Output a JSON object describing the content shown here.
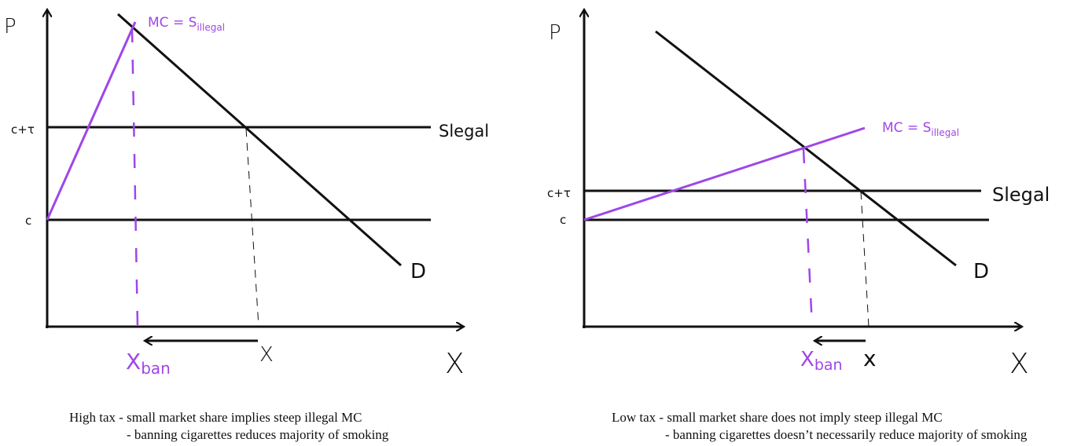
{
  "colors": {
    "ink": "#111111",
    "illegal": "#a046e8"
  },
  "left_diagram": {
    "y_axis_label": "P",
    "x_axis_label": "X",
    "price_labels": {
      "upper": "c+τ",
      "lower": "c"
    },
    "supply_legal_label": "Slegal",
    "mc_label_main": "MC = S",
    "mc_label_sub": "illegal",
    "demand_label": "D",
    "x_ban_main": "X",
    "x_ban_sub": "ban",
    "x_label": "X",
    "caption_line1": "High tax - small market share implies steep illegal MC",
    "caption_line2": "- banning cigarettes reduces majority of smoking"
  },
  "right_diagram": {
    "y_axis_label": "P",
    "x_axis_label": "X",
    "price_labels": {
      "upper": "c+τ",
      "lower": "c"
    },
    "supply_legal_label": "Slegal",
    "mc_label_main": "MC = S",
    "mc_label_sub": "illegal",
    "demand_label": "D",
    "x_ban_main": "X",
    "x_ban_sub": "ban",
    "x_label": "x",
    "caption_line1": "Low tax - small market share does not imply steep illegal MC",
    "caption_line2": "- banning cigarettes doesn’t necessarily reduce majority of smoking"
  }
}
